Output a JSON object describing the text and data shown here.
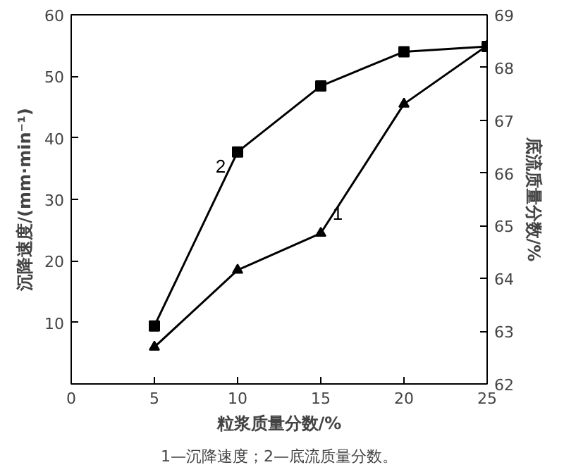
{
  "chart_data": {
    "type": "line",
    "xlabel": "粒浆质量分数/%",
    "ylabel": "沉降速度/(mm·min⁻¹)",
    "y2label": "底流质量分数/%",
    "x": [
      5,
      10,
      15,
      20,
      25
    ],
    "xlim": [
      0,
      25
    ],
    "xticks": [
      0,
      5,
      10,
      15,
      20,
      25
    ],
    "ylim": [
      0,
      60
    ],
    "yticks": [
      {
        "value": 0,
        "label": null
      },
      10,
      20,
      30,
      40,
      50,
      60
    ],
    "y2lim": [
      62,
      69
    ],
    "y2ticks": [
      62,
      63,
      64,
      65,
      66,
      67,
      68,
      69
    ],
    "grid": false,
    "series": [
      {
        "name": "1",
        "color": "#000000",
        "marker": "triangle",
        "values": [
          6,
          18.5,
          24.5,
          45.5,
          55
        ]
      },
      {
        "name": "2",
        "color": "#000000",
        "marker": "square",
        "axis": "y2",
        "values": [
          63.1,
          66.4,
          67.65,
          68.3,
          68.4
        ]
      }
    ],
    "annotations": [
      "1—沉降速度；2—底流质量分数。"
    ]
  }
}
